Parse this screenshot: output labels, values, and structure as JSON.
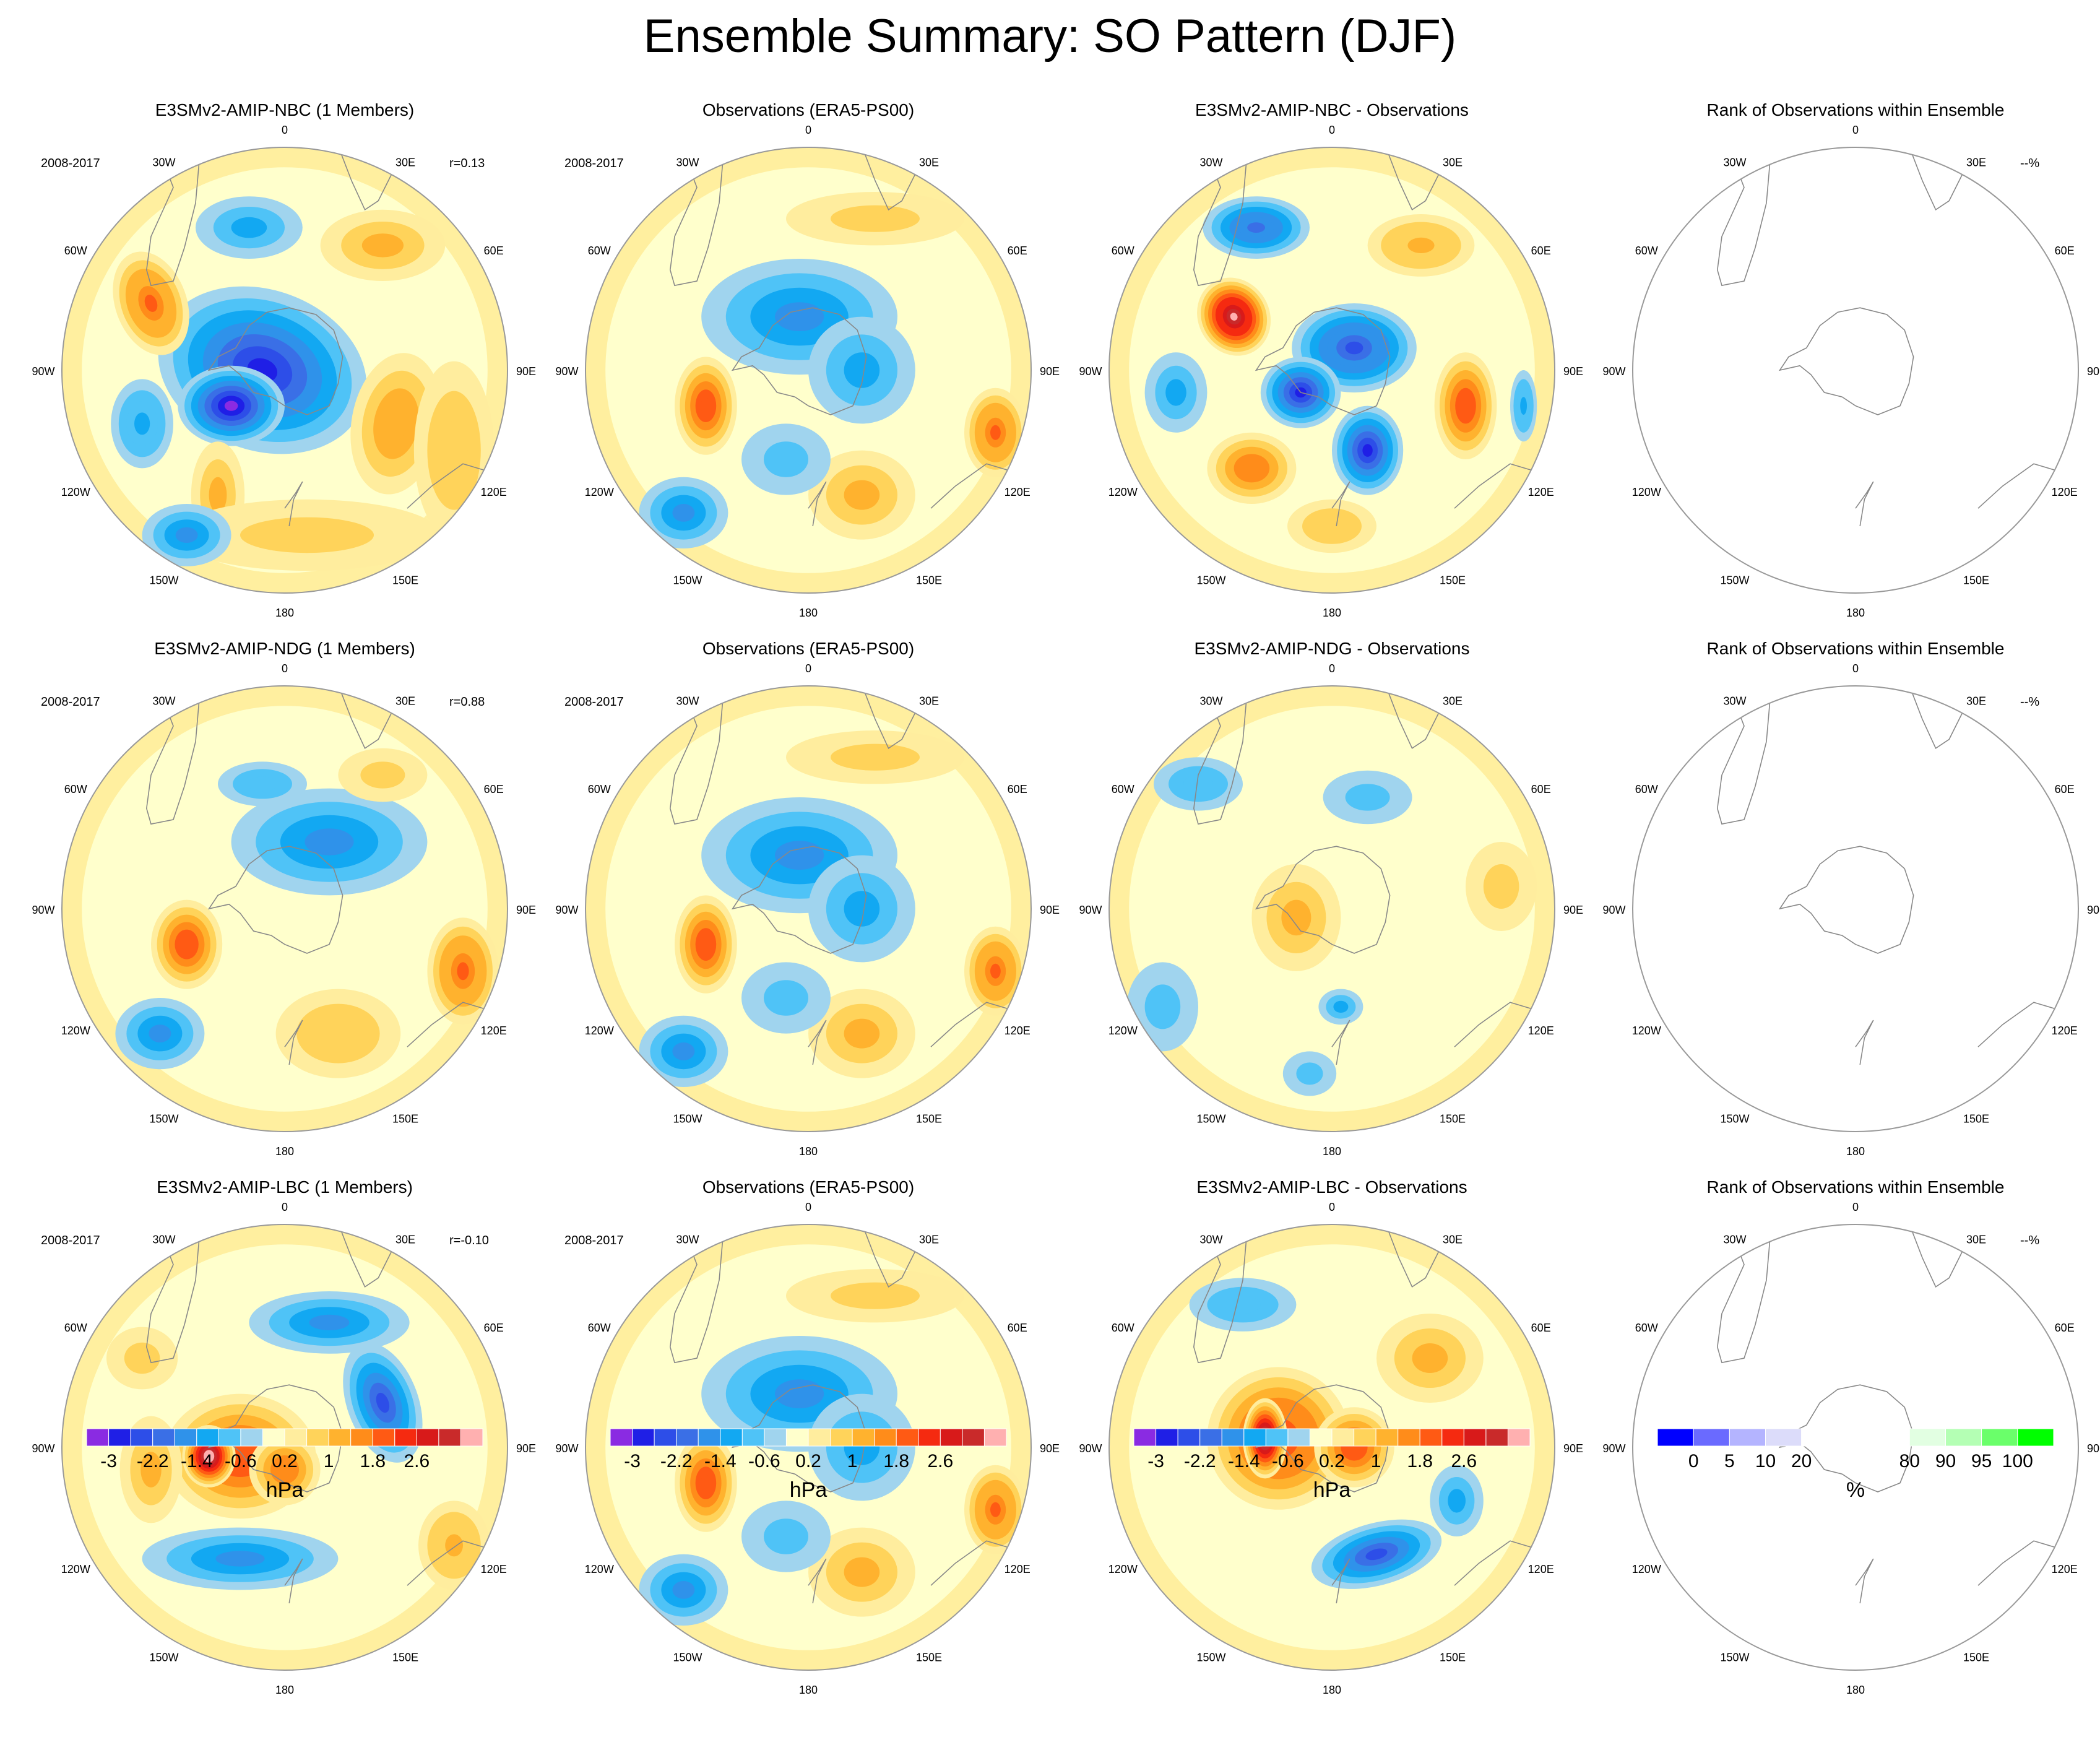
{
  "title": "Ensemble Summary: SO Pattern (DJF)",
  "panels": [
    [
      {
        "kind": "model",
        "title": "E3SMv2-AMIP-NBC (1 Members)",
        "period": "2008-2017",
        "corr": "r=0.13",
        "blobs": [
          [
            0.45,
            0.5,
            0.24,
            0.18,
            -2.4,
            20
          ],
          [
            0.38,
            0.58,
            0.12,
            0.09,
            -2.8,
            0
          ],
          [
            0.2,
            0.35,
            0.08,
            0.12,
            1.8,
            -20
          ],
          [
            0.75,
            0.62,
            0.1,
            0.16,
            1.2,
            10
          ],
          [
            0.72,
            0.22,
            0.14,
            0.08,
            0.8,
            0
          ],
          [
            0.42,
            0.18,
            0.12,
            0.07,
            -0.8,
            0
          ],
          [
            0.18,
            0.62,
            0.07,
            0.1,
            -1.0,
            0
          ],
          [
            0.35,
            0.78,
            0.06,
            0.12,
            0.9,
            0
          ],
          [
            0.55,
            0.87,
            0.3,
            0.08,
            0.6,
            0
          ],
          [
            0.88,
            0.68,
            0.09,
            0.2,
            0.7,
            0
          ],
          [
            0.28,
            0.87,
            0.1,
            0.07,
            -1.2,
            0
          ]
        ]
      },
      {
        "kind": "obs",
        "title": "Observations (ERA5-PS00)",
        "period": "2008-2017",
        "corr": "",
        "blobs": [
          [
            0.48,
            0.38,
            0.22,
            0.13,
            -1.2,
            0
          ],
          [
            0.27,
            0.58,
            0.07,
            0.11,
            2.0,
            0
          ],
          [
            0.92,
            0.64,
            0.07,
            0.1,
            1.8,
            0
          ],
          [
            0.62,
            0.78,
            0.12,
            0.1,
            0.8,
            0
          ],
          [
            0.62,
            0.5,
            0.12,
            0.12,
            -0.8,
            0
          ],
          [
            0.22,
            0.82,
            0.1,
            0.08,
            -1.2,
            0
          ],
          [
            0.65,
            0.16,
            0.2,
            0.06,
            0.6,
            0
          ],
          [
            0.45,
            0.7,
            0.1,
            0.08,
            -0.5,
            0
          ]
        ]
      },
      {
        "kind": "diff",
        "title": "E3SMv2-AMIP-NBC - Observations",
        "period": "",
        "corr": "",
        "blobs": [
          [
            0.28,
            0.38,
            0.08,
            0.09,
            3.4,
            -30
          ],
          [
            0.55,
            0.45,
            0.14,
            0.1,
            -2.2,
            0
          ],
          [
            0.43,
            0.55,
            0.09,
            0.08,
            -2.4,
            0
          ],
          [
            0.58,
            0.68,
            0.08,
            0.1,
            -2.4,
            0
          ],
          [
            0.8,
            0.58,
            0.07,
            0.12,
            2.0,
            0
          ],
          [
            0.33,
            0.18,
            0.12,
            0.07,
            -1.8,
            0
          ],
          [
            0.32,
            0.72,
            0.1,
            0.08,
            1.6,
            0
          ],
          [
            0.7,
            0.22,
            0.12,
            0.07,
            1.0,
            0
          ],
          [
            0.15,
            0.55,
            0.07,
            0.09,
            -0.8,
            0
          ],
          [
            0.93,
            0.58,
            0.03,
            0.08,
            -1.0,
            0
          ],
          [
            0.5,
            0.85,
            0.1,
            0.06,
            0.7,
            0
          ]
        ]
      },
      {
        "kind": "rank",
        "title": "Rank of Observations within Ensemble",
        "period": "",
        "corr": "--%",
        "blobs": []
      }
    ],
    [
      {
        "kind": "model",
        "title": "E3SMv2-AMIP-NDG (1 Members)",
        "period": "2008-2017",
        "corr": "r=0.88",
        "blobs": [
          [
            0.28,
            0.58,
            0.08,
            0.1,
            2.0,
            0
          ],
          [
            0.6,
            0.35,
            0.22,
            0.12,
            -1.2,
            0
          ],
          [
            0.9,
            0.64,
            0.08,
            0.12,
            1.8,
            0
          ],
          [
            0.22,
            0.78,
            0.1,
            0.08,
            -1.2,
            0
          ],
          [
            0.45,
            0.22,
            0.1,
            0.05,
            -0.7,
            0
          ],
          [
            0.62,
            0.78,
            0.14,
            0.1,
            0.7,
            0
          ],
          [
            0.72,
            0.2,
            0.1,
            0.06,
            0.6,
            0
          ]
        ]
      },
      {
        "kind": "obs",
        "title": "Observations (ERA5-PS00)",
        "period": "2008-2017",
        "corr": "",
        "blobs": [
          [
            0.48,
            0.38,
            0.22,
            0.13,
            -1.2,
            0
          ],
          [
            0.27,
            0.58,
            0.07,
            0.11,
            2.0,
            0
          ],
          [
            0.92,
            0.64,
            0.07,
            0.1,
            1.8,
            0
          ],
          [
            0.62,
            0.78,
            0.12,
            0.1,
            0.8,
            0
          ],
          [
            0.62,
            0.5,
            0.12,
            0.12,
            -0.8,
            0
          ],
          [
            0.22,
            0.82,
            0.1,
            0.08,
            -1.2,
            0
          ],
          [
            0.65,
            0.16,
            0.2,
            0.06,
            0.6,
            0
          ],
          [
            0.45,
            0.7,
            0.1,
            0.08,
            -0.5,
            0
          ]
        ]
      },
      {
        "kind": "diff",
        "title": "E3SMv2-AMIP-NDG - Observations",
        "period": "",
        "corr": "",
        "blobs": [
          [
            0.42,
            0.52,
            0.1,
            0.12,
            0.9,
            0
          ],
          [
            0.2,
            0.22,
            0.1,
            0.06,
            -0.7,
            0
          ],
          [
            0.58,
            0.25,
            0.1,
            0.06,
            -0.6,
            0
          ],
          [
            0.12,
            0.72,
            0.08,
            0.1,
            -0.6,
            0
          ],
          [
            0.52,
            0.72,
            0.05,
            0.04,
            -0.8,
            0
          ],
          [
            0.45,
            0.87,
            0.06,
            0.05,
            -0.5,
            0
          ],
          [
            0.88,
            0.45,
            0.08,
            0.1,
            0.4,
            0
          ]
        ]
      },
      {
        "kind": "rank",
        "title": "Rank of Observations within Ensemble",
        "period": "",
        "corr": "--%",
        "blobs": []
      }
    ],
    [
      {
        "kind": "model",
        "title": "E3SMv2-AMIP-LBC (1 Members)",
        "period": "2008-2017",
        "corr": "r=-0.10",
        "blobs": [
          [
            0.4,
            0.52,
            0.17,
            0.14,
            2.0,
            0
          ],
          [
            0.33,
            0.52,
            0.06,
            0.07,
            3.6,
            0
          ],
          [
            0.5,
            0.55,
            0.08,
            0.08,
            1.6,
            0
          ],
          [
            0.72,
            0.4,
            0.08,
            0.14,
            -2.0,
            -20
          ],
          [
            0.6,
            0.22,
            0.18,
            0.07,
            -1.2,
            0
          ],
          [
            0.4,
            0.75,
            0.22,
            0.07,
            -1.3,
            0
          ],
          [
            0.18,
            0.3,
            0.08,
            0.07,
            0.6,
            0
          ],
          [
            0.88,
            0.72,
            0.08,
            0.1,
            1.0,
            0
          ],
          [
            0.2,
            0.55,
            0.07,
            0.12,
            0.8,
            0
          ]
        ]
      },
      {
        "kind": "obs",
        "title": "Observations (ERA5-PS00)",
        "period": "2008-2017",
        "corr": "",
        "blobs": [
          [
            0.48,
            0.38,
            0.22,
            0.13,
            -1.2,
            0
          ],
          [
            0.27,
            0.58,
            0.07,
            0.11,
            2.0,
            0
          ],
          [
            0.92,
            0.64,
            0.07,
            0.1,
            1.8,
            0
          ],
          [
            0.62,
            0.78,
            0.12,
            0.1,
            0.8,
            0
          ],
          [
            0.62,
            0.5,
            0.12,
            0.12,
            -0.8,
            0
          ],
          [
            0.22,
            0.82,
            0.1,
            0.08,
            -1.2,
            0
          ],
          [
            0.65,
            0.16,
            0.2,
            0.06,
            0.6,
            0
          ],
          [
            0.45,
            0.7,
            0.1,
            0.08,
            -0.5,
            0
          ]
        ]
      },
      {
        "kind": "diff",
        "title": "E3SMv2-AMIP-LBC - Observations",
        "period": "",
        "corr": "",
        "blobs": [
          [
            0.38,
            0.48,
            0.16,
            0.16,
            2.2,
            0
          ],
          [
            0.35,
            0.48,
            0.05,
            0.09,
            3.6,
            0
          ],
          [
            0.55,
            0.5,
            0.09,
            0.09,
            2.0,
            0
          ],
          [
            0.6,
            0.74,
            0.15,
            0.07,
            -2.0,
            -15
          ],
          [
            0.72,
            0.3,
            0.12,
            0.1,
            0.8,
            0
          ],
          [
            0.3,
            0.18,
            0.12,
            0.06,
            -0.7,
            0
          ],
          [
            0.78,
            0.62,
            0.06,
            0.08,
            -0.8,
            0
          ]
        ]
      },
      {
        "kind": "rank",
        "title": "Rank of Observations within Ensemble",
        "period": "",
        "corr": "--%",
        "blobs": []
      }
    ]
  ],
  "lon_labels": [
    "0",
    "30E",
    "60E",
    "90E",
    "120E",
    "150E",
    "180",
    "150W",
    "120W",
    "90W",
    "60W",
    "30W"
  ],
  "colorbars": [
    {
      "unit": "hPa",
      "ticks": [
        "-3",
        "-2.2",
        "-1.4",
        "-0.6",
        "0.2",
        "1",
        "1.8",
        "2.6"
      ],
      "colors": [
        "#8a2be2",
        "#1f1fe6",
        "#2d4ee8",
        "#3a6fe6",
        "#2f92ea",
        "#12a8f2",
        "#4fc3f7",
        "#a0d4ee",
        "#ffffcc",
        "#ffed9e",
        "#ffd35a",
        "#ffb22e",
        "#ff8c1a",
        "#ff5a14",
        "#f52a10",
        "#d81a1a",
        "#c92a2a",
        "#ffb0b0"
      ]
    },
    {
      "unit": "hPa",
      "ticks": [
        "-3",
        "-2.2",
        "-1.4",
        "-0.6",
        "0.2",
        "1",
        "1.8",
        "2.6"
      ],
      "colors": [
        "#8a2be2",
        "#1f1fe6",
        "#2d4ee8",
        "#3a6fe6",
        "#2f92ea",
        "#12a8f2",
        "#4fc3f7",
        "#a0d4ee",
        "#ffffcc",
        "#ffed9e",
        "#ffd35a",
        "#ffb22e",
        "#ff8c1a",
        "#ff5a14",
        "#f52a10",
        "#d81a1a",
        "#c92a2a",
        "#ffb0b0"
      ]
    },
    {
      "unit": "hPa",
      "ticks": [
        "-3",
        "-2.2",
        "-1.4",
        "-0.6",
        "0.2",
        "1",
        "1.8",
        "2.6"
      ],
      "colors": [
        "#8a2be2",
        "#1f1fe6",
        "#2d4ee8",
        "#3a6fe6",
        "#2f92ea",
        "#12a8f2",
        "#4fc3f7",
        "#a0d4ee",
        "#ffffcc",
        "#ffed9e",
        "#ffd35a",
        "#ffb22e",
        "#ff8c1a",
        "#ff5a14",
        "#f52a10",
        "#d81a1a",
        "#c92a2a",
        "#ffb0b0"
      ]
    },
    {
      "unit": "%",
      "ticks": [
        "0",
        "5",
        "10",
        "20",
        "80",
        "90",
        "95",
        "100"
      ],
      "colors": [
        "#0000ff",
        "#6a6aff",
        "#b4b4ff",
        "#dcdcfa",
        "#ffffff",
        "#ffffff",
        "#ffffff",
        "#e2ffe2",
        "#b4ffb4",
        "#6aff6a",
        "#00ff00"
      ]
    }
  ]
}
